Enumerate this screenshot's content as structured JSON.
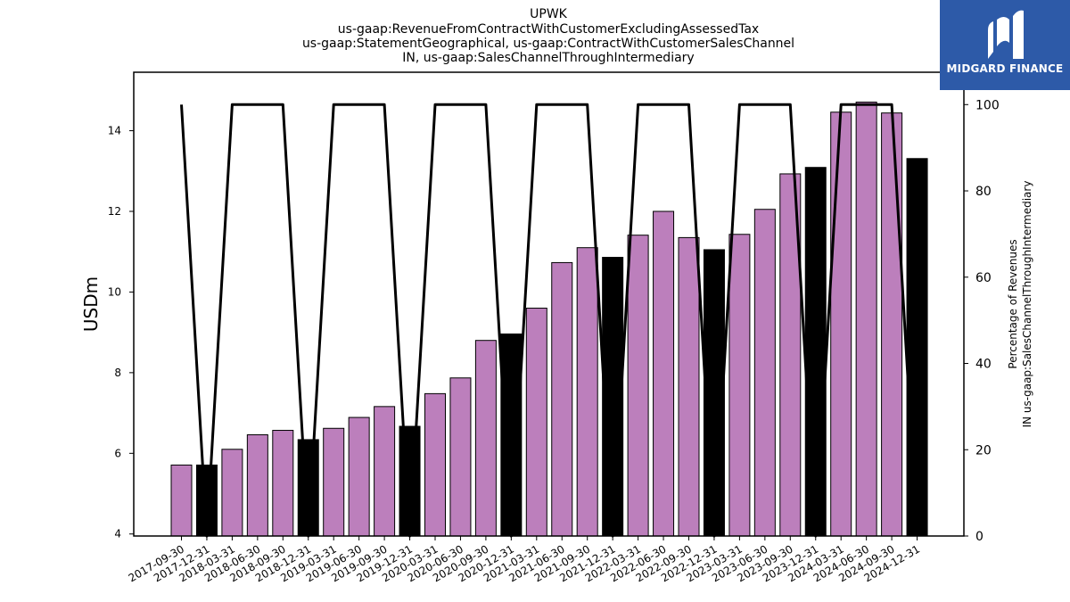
{
  "title_lines": [
    "UPWK",
    "us-gaap:RevenueFromContractWithCustomerExcludingAssessedTax",
    "us-gaap:StatementGeographical, us-gaap:ContractWithCustomerSalesChannel",
    "IN, us-gaap:SalesChannelThroughIntermediary"
  ],
  "logo": {
    "text": "MIDGARD FINANCE",
    "background": "#2d5aa8"
  },
  "colors": {
    "quarter_bar": "#bc7fbc",
    "annual_bar": "#000000",
    "line": "#000000"
  },
  "chart_data": {
    "type": "bar",
    "title": "UPWK\nus-gaap:RevenueFromContractWithCustomerExcludingAssessedTax\nus-gaap:StatementGeographical, us-gaap:ContractWithCustomerSalesChannel\nIN, us-gaap:SalesChannelThroughIntermediary",
    "ylabel": "USDm",
    "y2label_lines": [
      "Percentage of Revenues",
      "IN us-gaap:SalesChannelThroughIntermediary"
    ],
    "ylim": [
      3.95,
      15.45
    ],
    "y2lim": [
      0,
      107.5
    ],
    "yticks": [
      4,
      6,
      8,
      10,
      12,
      14
    ],
    "y2ticks": [
      0,
      20,
      40,
      60,
      80,
      100
    ],
    "categories": [
      "2017-09-30",
      "2017-12-31",
      "2018-03-31",
      "2018-06-30",
      "2018-09-30",
      "2018-12-31",
      "2019-03-31",
      "2019-06-30",
      "2019-09-30",
      "2019-12-31",
      "2020-03-31",
      "2020-06-30",
      "2020-09-30",
      "2020-12-31",
      "2021-03-31",
      "2021-06-30",
      "2021-09-30",
      "2021-12-31",
      "2022-03-31",
      "2022-06-30",
      "2022-09-30",
      "2022-12-31",
      "2023-03-31",
      "2023-06-30",
      "2023-09-30",
      "2023-12-31",
      "2024-03-31",
      "2024-06-30",
      "2024-09-30",
      "2024-12-31"
    ],
    "series": [
      {
        "kind": "bar",
        "values": [
          5.71,
          5.71,
          6.1,
          6.46,
          6.57,
          6.34,
          6.62,
          6.89,
          7.16,
          6.67,
          7.48,
          7.87,
          8.8,
          8.96,
          9.6,
          10.73,
          11.1,
          10.86,
          11.41,
          12.0,
          11.35,
          11.05,
          11.43,
          12.05,
          12.93,
          13.09,
          14.46,
          14.71,
          14.44,
          13.31
        ],
        "annual": [
          false,
          true,
          false,
          false,
          false,
          true,
          false,
          false,
          false,
          true,
          false,
          false,
          false,
          true,
          false,
          false,
          false,
          true,
          false,
          false,
          false,
          true,
          false,
          false,
          false,
          true,
          false,
          false,
          false,
          true
        ]
      },
      {
        "kind": "line",
        "axis": "right",
        "values": [
          100,
          0,
          100,
          100,
          100,
          0,
          100,
          100,
          100,
          0,
          100,
          100,
          100,
          0,
          100,
          100,
          100,
          0,
          100,
          100,
          100,
          0,
          100,
          100,
          100,
          0,
          100,
          100,
          100,
          0
        ]
      }
    ],
    "grid": false,
    "legend": "none"
  }
}
